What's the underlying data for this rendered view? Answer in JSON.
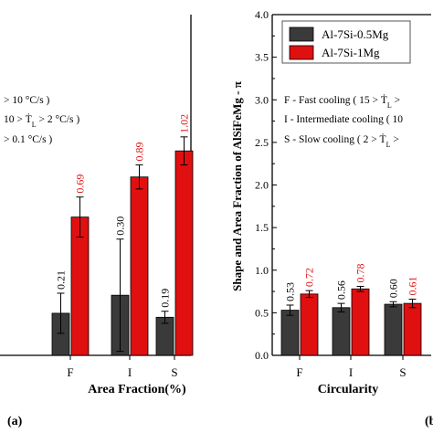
{
  "chart_data": [
    {
      "type": "bar",
      "panel_label": "(a)",
      "xlabel": "Area Fraction(%)",
      "categories": [
        "F",
        "I",
        "S"
      ],
      "series": [
        {
          "name": "Al-7Si-0.5Mg",
          "color": "#3a3a3a",
          "values": [
            0.21,
            0.3,
            0.19
          ],
          "errors": [
            0.1,
            0.28,
            0.03
          ],
          "labels": [
            "0.21",
            "0.30",
            "0.19"
          ]
        },
        {
          "name": "Al-7Si-1Mg",
          "color": "#e01010",
          "values": [
            0.69,
            0.89,
            1.02
          ],
          "errors": [
            0.1,
            0.06,
            0.07
          ],
          "labels": [
            "0.69",
            "0.89",
            "1.02"
          ]
        }
      ],
      "label_colors": [
        "#000000",
        "#e01010"
      ],
      "ylim": [
        0,
        1.7
      ],
      "legend_lines": [
        "> 10 °C/s )",
        "10 > Ṫ<sub>L</sub> > 2 °C/s )",
        "> 0.1 °C/s )"
      ]
    },
    {
      "type": "bar",
      "panel_label": "(b)",
      "xlabel": "Circularity",
      "ylabel": "Shape and Area Fraction of AlSiFeMg - π",
      "yticks": [
        "0.0",
        "0.5",
        "1.0",
        "1.5",
        "2.0",
        "2.5",
        "3.0",
        "3.5",
        "4.0"
      ],
      "ylim": [
        0,
        4.0
      ],
      "categories": [
        "F",
        "I",
        "S"
      ],
      "series": [
        {
          "name": "Al-7Si-0.5Mg",
          "color": "#3a3a3a",
          "values": [
            0.53,
            0.56,
            0.6
          ],
          "errors": [
            0.06,
            0.05,
            0.03
          ],
          "labels": [
            "0.53",
            "0.56",
            "0.60"
          ]
        },
        {
          "name": "Al-7Si-1Mg",
          "color": "#e01010",
          "values": [
            0.72,
            0.78,
            0.61
          ],
          "errors": [
            0.04,
            0.03,
            0.05
          ],
          "labels": [
            "0.72",
            "0.78",
            "0.61"
          ]
        }
      ],
      "label_colors": [
        "#000000",
        "#e01010"
      ],
      "legend": [
        "Al-7Si-0.5Mg",
        "Al-7Si-1Mg"
      ],
      "legend_lines": [
        "F - Fast cooling ( 15 > Ṫ<sub>L</sub> >",
        "I - Intermediate cooling ( 10",
        "S - Slow cooling ( 2 > Ṫ<sub>L</sub> >"
      ]
    }
  ]
}
